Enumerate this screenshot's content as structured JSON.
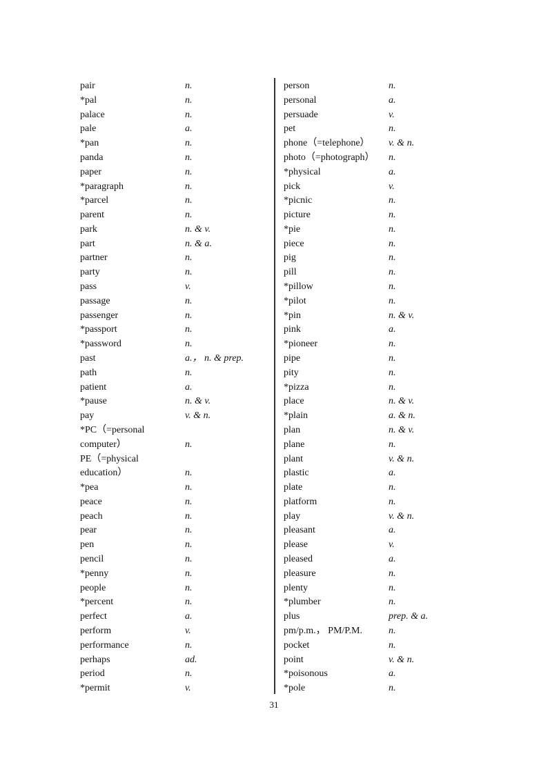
{
  "columns": [
    {
      "entries": [
        {
          "word": "pair",
          "pos": "n."
        },
        {
          "word": "*pal",
          "pos": "n."
        },
        {
          "word": "palace",
          "pos": "n."
        },
        {
          "word": "pale",
          "pos": "a."
        },
        {
          "word": "*pan",
          "pos": "n."
        },
        {
          "word": "panda",
          "pos": "n."
        },
        {
          "word": "paper",
          "pos": "n."
        },
        {
          "word": "*paragraph",
          "pos": "n."
        },
        {
          "word": "*parcel",
          "pos": "n."
        },
        {
          "word": "parent",
          "pos": "n."
        },
        {
          "word": "park",
          "pos": "n. & v."
        },
        {
          "word": "part",
          "pos": "n. & a."
        },
        {
          "word": "partner",
          "pos": "n."
        },
        {
          "word": "party",
          "pos": "n."
        },
        {
          "word": "pass",
          "pos": "v."
        },
        {
          "word": "passage",
          "pos": "n."
        },
        {
          "word": "passenger",
          "pos": "n."
        },
        {
          "word": "*passport",
          "pos": "n."
        },
        {
          "word": "*password",
          "pos": "n."
        },
        {
          "word": "past",
          "pos": "a.， n. & prep."
        },
        {
          "word": "path",
          "pos": "n."
        },
        {
          "word": "patient",
          "pos": "a."
        },
        {
          "word": "*pause",
          "pos": "n. & v."
        },
        {
          "word": "pay",
          "pos": "v. & n."
        },
        {
          "word": "*PC（=personal",
          "pos": ""
        },
        {
          "word": "computer）",
          "pos": "n."
        },
        {
          "word": "PE（=physical",
          "pos": ""
        },
        {
          "word": "education）",
          "pos": "n."
        },
        {
          "word": "*pea",
          "pos": "n."
        },
        {
          "word": "peace",
          "pos": "n."
        },
        {
          "word": "peach",
          "pos": "n."
        },
        {
          "word": "pear",
          "pos": "n."
        },
        {
          "word": "pen",
          "pos": "n."
        },
        {
          "word": "pencil",
          "pos": "n."
        },
        {
          "word": "*penny",
          "pos": "n."
        },
        {
          "word": "people",
          "pos": "n."
        },
        {
          "word": "*percent",
          "pos": "n."
        },
        {
          "word": "perfect",
          "pos": "a."
        },
        {
          "word": "perform",
          "pos": "v."
        },
        {
          "word": "performance",
          "pos": "n."
        },
        {
          "word": "perhaps",
          "pos": "ad."
        },
        {
          "word": "period",
          "pos": "n."
        },
        {
          "word": "*permit",
          "pos": "v."
        }
      ]
    },
    {
      "entries": [
        {
          "word": "person",
          "pos": "n."
        },
        {
          "word": "personal",
          "pos": "a."
        },
        {
          "word": "persuade",
          "pos": "v."
        },
        {
          "word": "pet",
          "pos": "n."
        },
        {
          "word": "phone（=telephone）",
          "pos": "v. & n."
        },
        {
          "word": "photo（=photograph）",
          "pos": "n."
        },
        {
          "word": "*physical",
          "pos": "a."
        },
        {
          "word": "pick",
          "pos": "v."
        },
        {
          "word": "*picnic",
          "pos": "n."
        },
        {
          "word": "picture",
          "pos": "n."
        },
        {
          "word": "*pie",
          "pos": "n."
        },
        {
          "word": "piece",
          "pos": "n."
        },
        {
          "word": "pig",
          "pos": "n."
        },
        {
          "word": "pill",
          "pos": "n."
        },
        {
          "word": "*pillow",
          "pos": "n."
        },
        {
          "word": "*pilot",
          "pos": "n."
        },
        {
          "word": "*pin",
          "pos": "n. & v."
        },
        {
          "word": "pink",
          "pos": "a."
        },
        {
          "word": "*pioneer",
          "pos": "n."
        },
        {
          "word": "pipe",
          "pos": "n."
        },
        {
          "word": "pity",
          "pos": "n."
        },
        {
          "word": "*pizza",
          "pos": "n."
        },
        {
          "word": "place",
          "pos": "n. & v."
        },
        {
          "word": "*plain",
          "pos": "a. & n."
        },
        {
          "word": "plan",
          "pos": "n. & v."
        },
        {
          "word": "plane",
          "pos": "n."
        },
        {
          "word": "plant",
          "pos": "v. & n."
        },
        {
          "word": "plastic",
          "pos": "a."
        },
        {
          "word": "plate",
          "pos": "n."
        },
        {
          "word": "platform",
          "pos": "n."
        },
        {
          "word": "play",
          "pos": "v. & n."
        },
        {
          "word": "pleasant",
          "pos": "a."
        },
        {
          "word": "please",
          "pos": "v."
        },
        {
          "word": "pleased",
          "pos": "a."
        },
        {
          "word": "pleasure",
          "pos": "n."
        },
        {
          "word": "plenty",
          "pos": "n."
        },
        {
          "word": "*plumber",
          "pos": "n."
        },
        {
          "word": "plus",
          "pos": "prep. & a."
        },
        {
          "word": "pm/p.m.， PM/P.M.",
          "pos": "n."
        },
        {
          "word": "pocket",
          "pos": "n."
        },
        {
          "word": "point",
          "pos": "v. & n."
        },
        {
          "word": "*poisonous",
          "pos": "a."
        },
        {
          "word": "*pole",
          "pos": "n."
        }
      ]
    }
  ],
  "page_number": "31"
}
